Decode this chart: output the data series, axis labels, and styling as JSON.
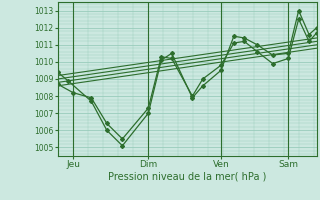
{
  "background_color": "#cce8e0",
  "plot_bg_color": "#cce8e0",
  "grid_color": "#99ccbb",
  "line_color": "#2d6e2d",
  "ylim": [
    1004.5,
    1013.5
  ],
  "yticks": [
    1005,
    1006,
    1007,
    1008,
    1009,
    1010,
    1011,
    1012,
    1013
  ],
  "xlabel": "Pression niveau de la mer( hPa )",
  "day_labels": [
    "Jeu",
    "Dim",
    "Ven",
    "Sam"
  ],
  "day_positions": [
    0.06,
    0.35,
    0.63,
    0.89
  ],
  "series1_x": [
    0.0,
    0.04,
    0.13,
    0.19,
    0.25,
    0.35,
    0.4,
    0.44,
    0.52,
    0.56,
    0.63,
    0.68,
    0.72,
    0.77,
    0.83,
    0.89,
    0.93,
    0.97,
    1.0
  ],
  "series1_y": [
    1009.4,
    1008.9,
    1007.7,
    1006.0,
    1005.1,
    1007.0,
    1010.1,
    1010.5,
    1007.9,
    1008.6,
    1009.5,
    1011.5,
    1011.4,
    1011.0,
    1010.4,
    1010.5,
    1013.0,
    1011.6,
    1012.0
  ],
  "series2_x": [
    0.0,
    0.06,
    0.13,
    0.19,
    0.25,
    0.35,
    0.4,
    0.44,
    0.52,
    0.56,
    0.63,
    0.68,
    0.72,
    0.77,
    0.83,
    0.89,
    0.93,
    0.97,
    1.0
  ],
  "series2_y": [
    1008.7,
    1008.2,
    1007.9,
    1006.4,
    1005.5,
    1007.3,
    1010.3,
    1010.2,
    1008.0,
    1009.0,
    1009.8,
    1011.1,
    1011.2,
    1010.6,
    1009.9,
    1010.2,
    1012.5,
    1011.2,
    1011.7
  ],
  "trend_lines": [
    {
      "x": [
        0.0,
        1.0
      ],
      "y": [
        1008.6,
        1010.8
      ]
    },
    {
      "x": [
        0.0,
        1.0
      ],
      "y": [
        1008.8,
        1011.0
      ]
    },
    {
      "x": [
        0.0,
        1.0
      ],
      "y": [
        1009.0,
        1011.2
      ]
    },
    {
      "x": [
        0.0,
        1.0
      ],
      "y": [
        1009.2,
        1011.4
      ]
    }
  ]
}
